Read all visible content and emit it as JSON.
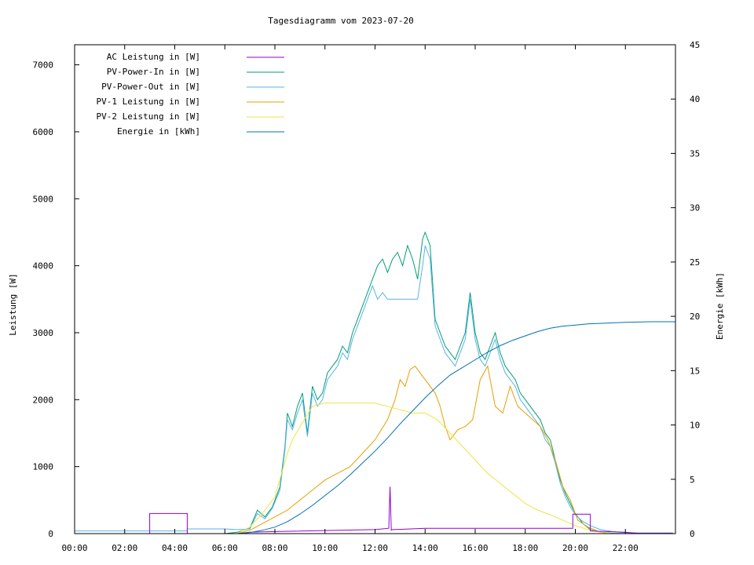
{
  "chart_data": {
    "type": "line",
    "title": "Tagesdiagramm vom 2023-07-20",
    "ylabel": "Leistung [W]",
    "y2label": "Energie [kWh]",
    "xlim": [
      "00:00",
      "24:00"
    ],
    "ylim": [
      0,
      7300
    ],
    "y2lim": [
      0,
      45
    ],
    "x_ticks": [
      "00:00",
      "02:00",
      "04:00",
      "06:00",
      "08:00",
      "10:00",
      "12:00",
      "14:00",
      "16:00",
      "18:00",
      "20:00",
      "22:00"
    ],
    "y_ticks": [
      0,
      1000,
      2000,
      3000,
      4000,
      5000,
      6000,
      7000
    ],
    "y2_ticks": [
      0,
      5,
      10,
      15,
      20,
      25,
      30,
      35,
      40,
      45
    ],
    "legend_position": "top-left",
    "series": [
      {
        "name": "AC Leistung in [W]",
        "color": "#9400d3",
        "axis": "left",
        "x": [
          0.0,
          3.0,
          3.0,
          4.5,
          4.5,
          6.5,
          7.0,
          8.0,
          12.0,
          12.55,
          12.6,
          12.65,
          12.7,
          14.0,
          19.9,
          19.9,
          20.6,
          20.6,
          22.0,
          22.5,
          23.9
        ],
        "values": [
          0,
          0,
          300,
          300,
          0,
          0,
          20,
          30,
          60,
          80,
          700,
          50,
          60,
          80,
          80,
          290,
          290,
          40,
          20,
          5,
          5
        ]
      },
      {
        "name": "PV-Power-In in [W]",
        "color": "#009e73",
        "axis": "left",
        "x": [
          0.0,
          6.0,
          6.5,
          7.0,
          7.3,
          7.6,
          7.9,
          8.2,
          8.4,
          8.5,
          8.7,
          8.9,
          9.1,
          9.3,
          9.5,
          9.7,
          9.9,
          10.1,
          10.3,
          10.5,
          10.7,
          10.9,
          11.1,
          11.3,
          11.5,
          11.7,
          11.9,
          12.1,
          12.3,
          12.5,
          12.7,
          12.9,
          13.1,
          13.3,
          13.5,
          13.7,
          13.9,
          14.0,
          14.2,
          14.4,
          14.6,
          14.8,
          15.0,
          15.2,
          15.4,
          15.6,
          15.8,
          16.0,
          16.2,
          16.4,
          16.6,
          16.8,
          17.0,
          17.2,
          17.4,
          17.6,
          17.8,
          18.0,
          18.2,
          18.4,
          18.6,
          18.8,
          19.0,
          19.2,
          19.4,
          19.6,
          19.8,
          20.0,
          20.3,
          20.6,
          21.0,
          21.5,
          22.0
        ],
        "values": [
          0,
          0,
          20,
          80,
          350,
          250,
          400,
          700,
          1300,
          1800,
          1600,
          1900,
          2100,
          1500,
          2200,
          2000,
          2100,
          2400,
          2500,
          2600,
          2800,
          2700,
          3000,
          3200,
          3400,
          3600,
          3800,
          4000,
          4100,
          3900,
          4100,
          4200,
          4000,
          4300,
          4100,
          3800,
          4400,
          4500,
          4300,
          3200,
          3000,
          2800,
          2700,
          2600,
          2800,
          3000,
          3600,
          3000,
          2700,
          2600,
          2800,
          3000,
          2700,
          2500,
          2400,
          2300,
          2100,
          2000,
          1900,
          1800,
          1700,
          1500,
          1400,
          1100,
          800,
          600,
          450,
          300,
          150,
          60,
          20,
          5,
          0
        ]
      },
      {
        "name": "PV-Power-Out in [W]",
        "color": "#56b4e9",
        "axis": "left",
        "x": [
          0.0,
          4.5,
          4.5,
          6.0,
          6.5,
          7.0,
          7.3,
          7.6,
          7.9,
          8.2,
          8.4,
          8.5,
          8.7,
          8.9,
          9.1,
          9.3,
          9.5,
          9.7,
          9.9,
          10.1,
          10.3,
          10.5,
          10.7,
          10.9,
          11.1,
          11.3,
          11.5,
          11.7,
          11.9,
          12.1,
          12.3,
          12.5,
          12.7,
          12.9,
          13.1,
          13.3,
          13.5,
          13.7,
          13.9,
          14.0,
          14.2,
          14.4,
          14.6,
          14.8,
          15.0,
          15.2,
          15.4,
          15.6,
          15.8,
          16.0,
          16.2,
          16.4,
          16.6,
          16.8,
          17.0,
          17.2,
          17.4,
          17.6,
          17.8,
          18.0,
          18.2,
          18.4,
          18.6,
          18.8,
          19.0,
          19.2,
          19.4,
          19.6,
          19.8,
          20.0,
          20.3,
          20.6,
          21.0,
          21.5,
          22.0,
          23.9
        ],
        "values": [
          40,
          40,
          70,
          70,
          60,
          70,
          300,
          220,
          380,
          650,
          1250,
          1700,
          1550,
          1800,
          2000,
          1450,
          2100,
          1900,
          2000,
          2300,
          2400,
          2500,
          2700,
          2600,
          2900,
          3100,
          3300,
          3500,
          3700,
          3500,
          3600,
          3500,
          3500,
          3500,
          3500,
          3500,
          3500,
          3500,
          4000,
          4300,
          4100,
          3100,
          2900,
          2700,
          2600,
          2500,
          2700,
          2900,
          3500,
          2900,
          2600,
          2500,
          2700,
          2900,
          2600,
          2400,
          2300,
          2200,
          2000,
          1900,
          1800,
          1700,
          1600,
          1400,
          1300,
          1050,
          750,
          550,
          400,
          280,
          180,
          120,
          60,
          30,
          10,
          10
        ]
      },
      {
        "name": "PV-1 Leistung in [W]",
        "color": "#e69f00",
        "axis": "left",
        "x": [
          0.0,
          6.5,
          7.0,
          7.5,
          8.0,
          8.5,
          9.0,
          9.5,
          10.0,
          10.5,
          11.0,
          11.5,
          12.0,
          12.5,
          12.8,
          13.0,
          13.2,
          13.4,
          13.6,
          13.8,
          14.0,
          14.2,
          14.4,
          14.6,
          14.8,
          15.0,
          15.3,
          15.6,
          15.9,
          16.2,
          16.5,
          16.8,
          17.1,
          17.4,
          17.7,
          18.0,
          18.3,
          18.6,
          18.9,
          19.2,
          19.5,
          19.8,
          20.1,
          20.5,
          21.0,
          21.5
        ],
        "values": [
          0,
          0,
          50,
          150,
          250,
          350,
          500,
          650,
          800,
          900,
          1000,
          1200,
          1400,
          1700,
          2000,
          2300,
          2200,
          2450,
          2500,
          2400,
          2300,
          2200,
          2100,
          1900,
          1600,
          1400,
          1550,
          1600,
          1700,
          2300,
          2500,
          1900,
          1800,
          2200,
          1900,
          1800,
          1700,
          1600,
          1400,
          1100,
          700,
          500,
          200,
          100,
          20,
          0
        ]
      },
      {
        "name": "PV-2 Leistung in [W]",
        "color": "#f0e442",
        "axis": "left",
        "x": [
          0.0,
          6.5,
          7.0,
          7.5,
          8.0,
          8.5,
          8.7,
          9.0,
          9.5,
          10.0,
          10.5,
          11.0,
          11.5,
          12.0,
          12.5,
          13.0,
          13.5,
          14.0,
          14.5,
          15.0,
          15.5,
          16.0,
          16.5,
          17.0,
          17.5,
          18.0,
          18.5,
          19.0,
          19.5,
          20.0,
          20.5,
          21.0,
          21.5
        ],
        "values": [
          0,
          0,
          100,
          300,
          550,
          1200,
          1400,
          1600,
          1900,
          1950,
          1950,
          1950,
          1950,
          1950,
          1900,
          1850,
          1800,
          1800,
          1700,
          1500,
          1300,
          1100,
          900,
          750,
          600,
          450,
          350,
          280,
          200,
          120,
          60,
          20,
          0
        ]
      },
      {
        "name": "Energie in [kWh]",
        "color": "#0072b2",
        "axis": "right",
        "x": [
          0.0,
          6.5,
          7.0,
          7.5,
          8.0,
          8.5,
          9.0,
          9.5,
          10.0,
          10.5,
          11.0,
          11.5,
          12.0,
          12.5,
          13.0,
          13.5,
          14.0,
          14.5,
          15.0,
          15.5,
          16.0,
          16.5,
          17.0,
          17.5,
          18.0,
          18.5,
          19.0,
          19.5,
          20.0,
          20.5,
          21.0,
          21.5,
          22.0,
          23.0,
          24.0
        ],
        "values": [
          0,
          0,
          0.1,
          0.3,
          0.6,
          1.1,
          1.8,
          2.6,
          3.5,
          4.4,
          5.4,
          6.5,
          7.6,
          8.8,
          10.1,
          11.3,
          12.5,
          13.6,
          14.6,
          15.3,
          16.0,
          16.7,
          17.3,
          17.8,
          18.2,
          18.6,
          18.9,
          19.1,
          19.2,
          19.3,
          19.35,
          19.4,
          19.45,
          19.5,
          19.5
        ]
      }
    ]
  }
}
